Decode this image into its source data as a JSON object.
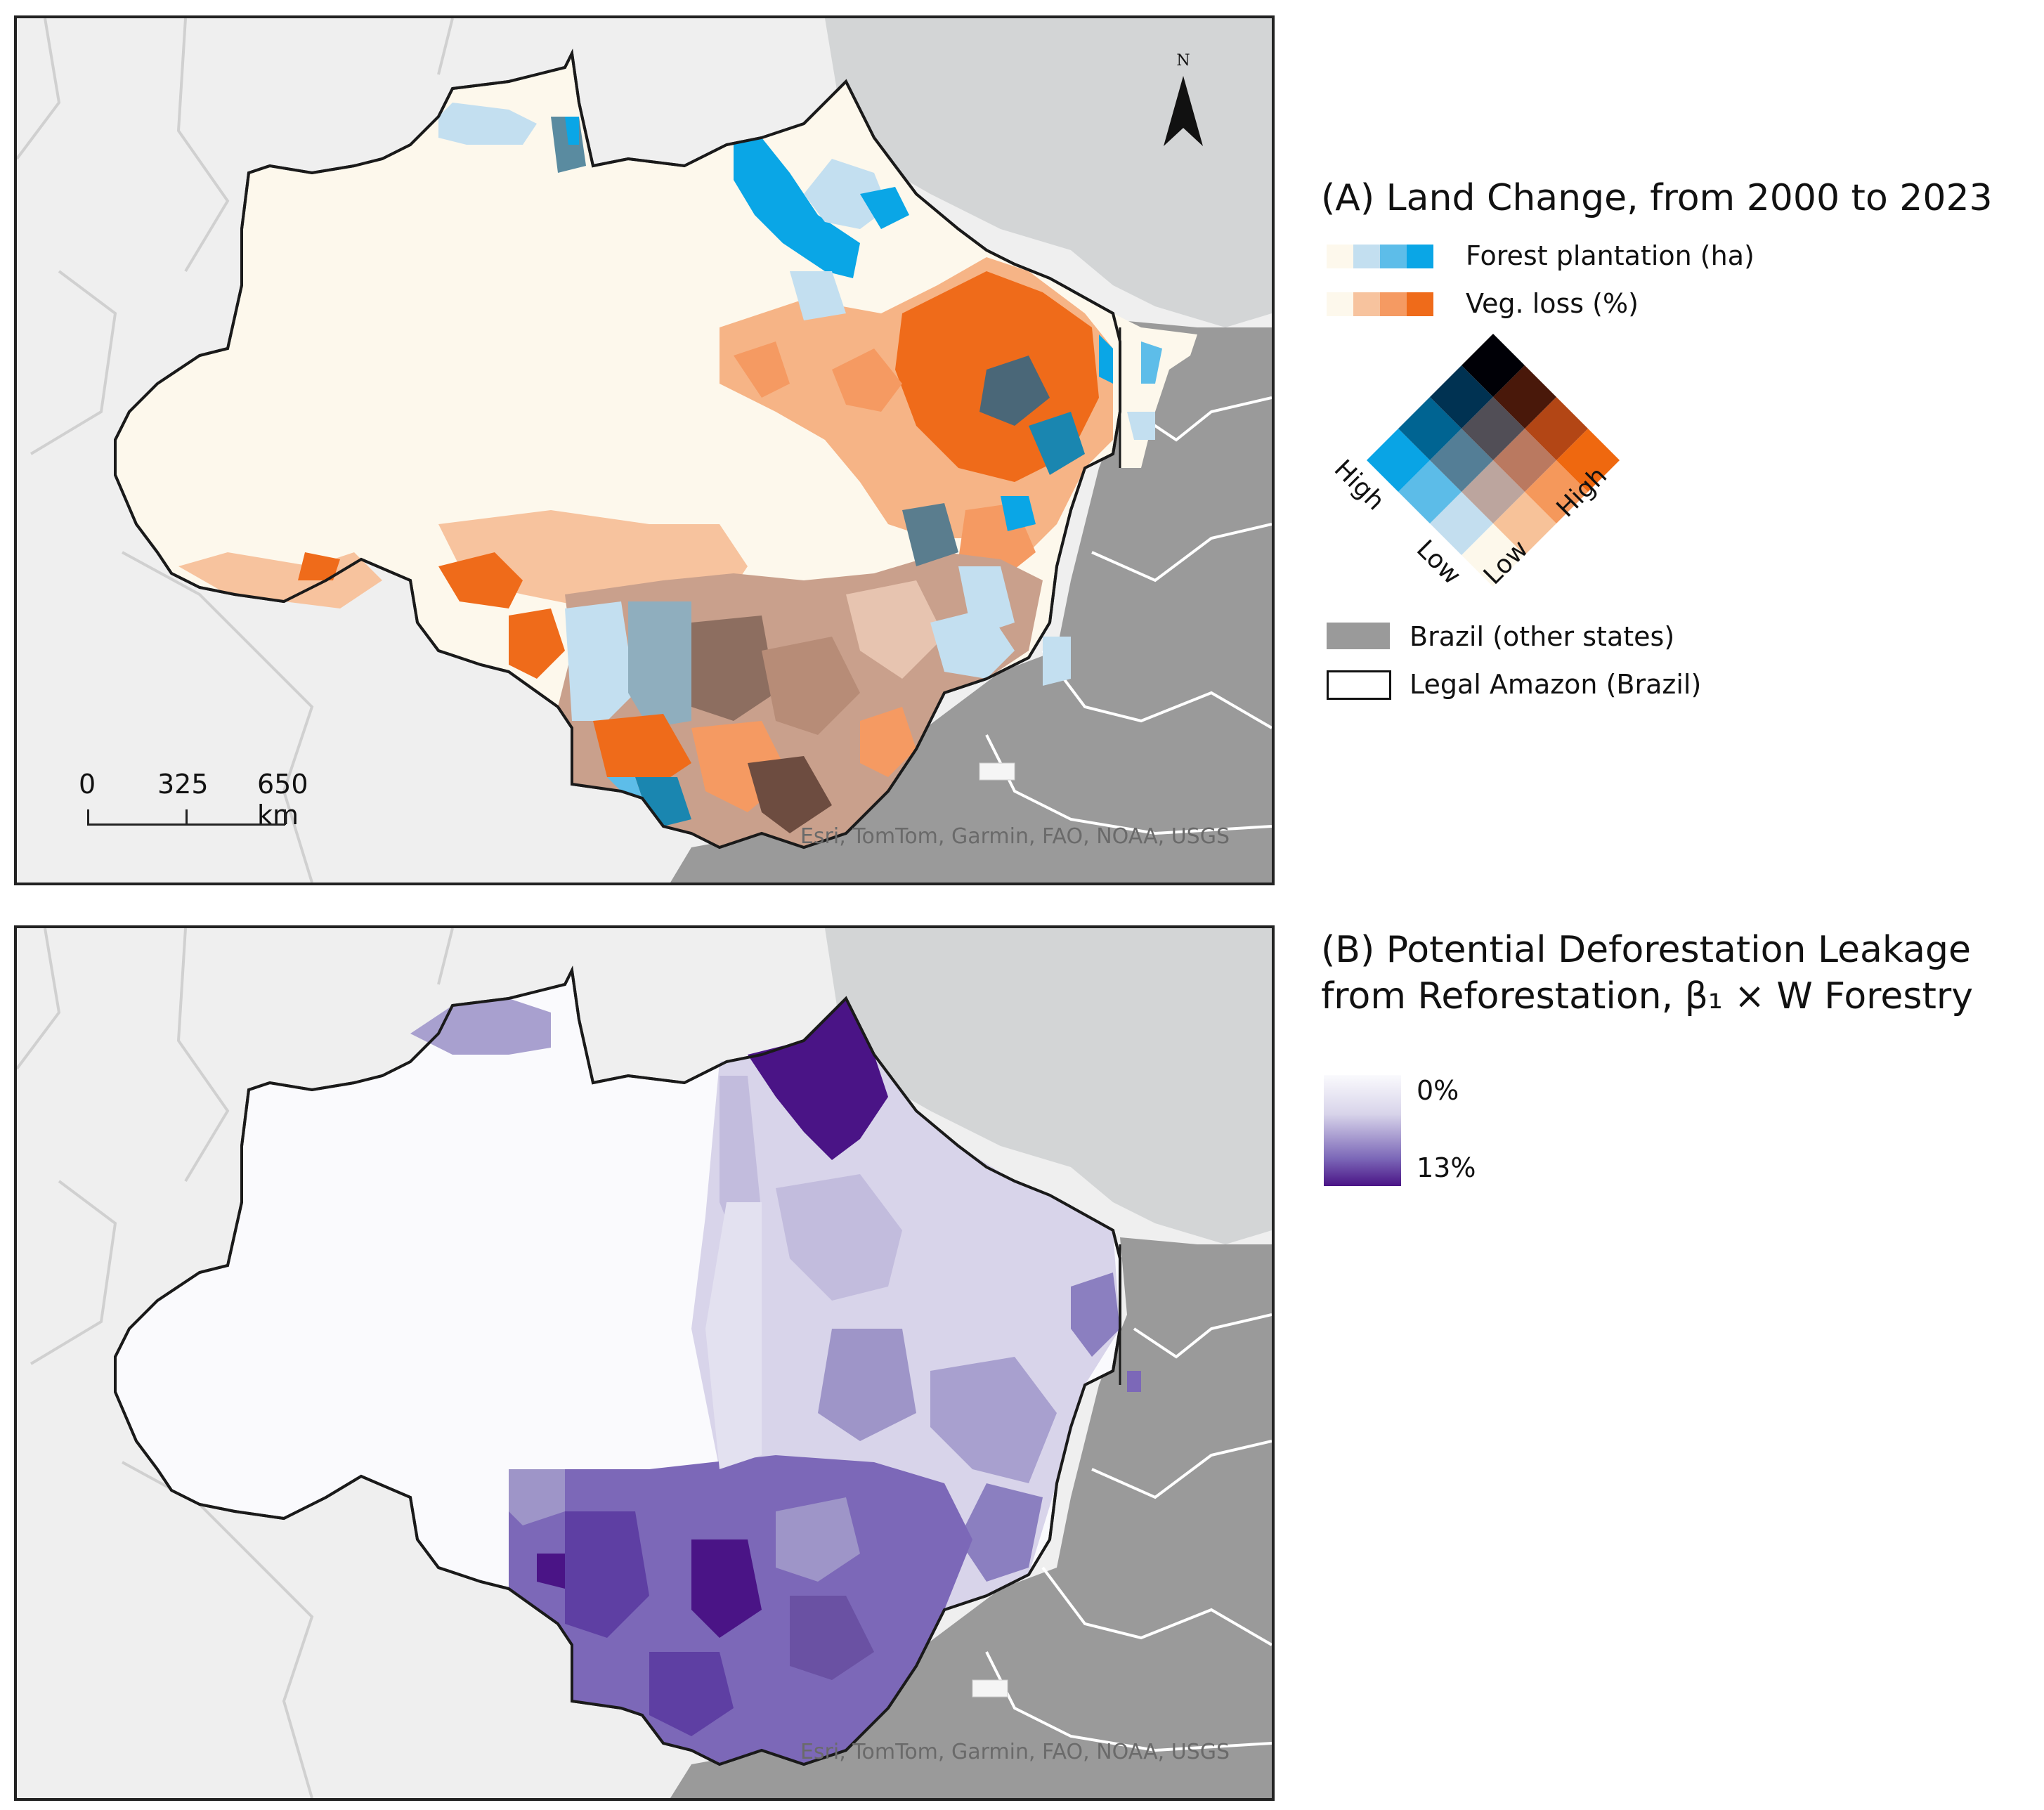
{
  "panel_a": {
    "legend_title": "(A) Land Change, from 2000 to 2023",
    "forest_plantation_label": "Forest plantation (ha)",
    "veg_loss_label": "Veg. loss (%)",
    "forest_colors": [
      "#fdf8ec",
      "#c3dff0",
      "#5dbde9",
      "#0aa6e6"
    ],
    "veg_colors": [
      "#fdf8ec",
      "#f7c39e",
      "#f59a62",
      "#ef6b1a"
    ],
    "bivariate_labels": {
      "high_left": "High",
      "low_left": "Low",
      "low_right": "Low",
      "high_right": "High"
    },
    "brazil_other_label": "Brazil (other states)",
    "legal_amazon_label": "Legal Amazon (Brazil)",
    "scalebar": {
      "labels": [
        "0",
        "325",
        "650 km"
      ]
    },
    "north_label": "N",
    "attribution": "Esri, TomTom, Garmin, FAO, NOAA, USGS"
  },
  "panel_b": {
    "legend_title_line1": "(B) Potential Deforestation Leakage",
    "legend_title_line2": "from Reforestation, β₁ × W Forestry",
    "legend_min": "0%",
    "legend_max": "13%",
    "gradient_colors": [
      "#fafafd",
      "#d8d4ea",
      "#7c68b8",
      "#4a1486"
    ],
    "attribution": "Esri, TomTom, Garmin, FAO, NOAA, USGS"
  }
}
